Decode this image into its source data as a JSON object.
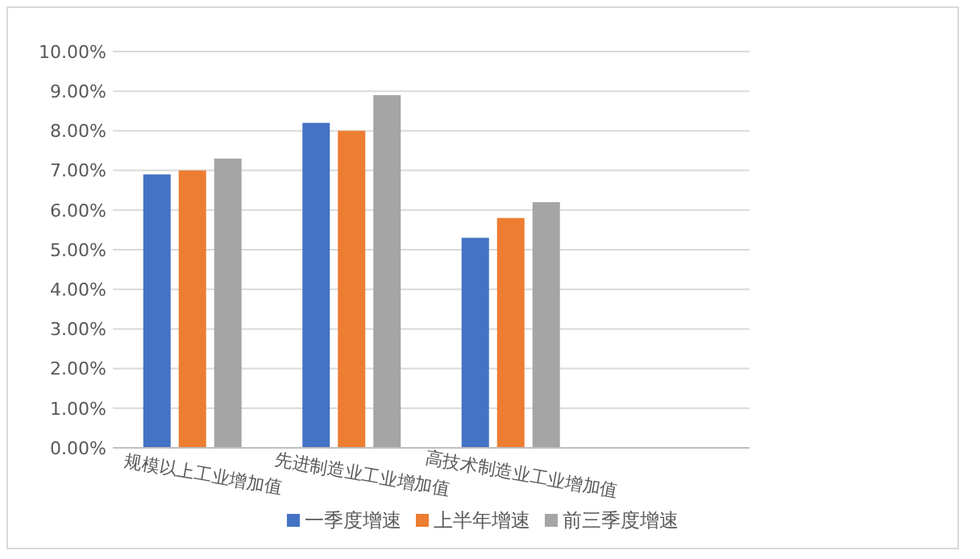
{
  "chart_data": {
    "type": "bar",
    "categories": [
      "规模以上工业增加值",
      "先进制造业工业增加值",
      "高技术制造业工业增加值",
      null
    ],
    "series": [
      {
        "name": "一季度增速",
        "color": "#4472c4",
        "values": [
          6.9,
          8.2,
          5.3,
          null
        ]
      },
      {
        "name": "上半年增速",
        "color": "#ed7d31",
        "values": [
          7.0,
          8.0,
          5.8,
          null
        ]
      },
      {
        "name": "前三季度增速",
        "color": "#a5a5a5",
        "values": [
          7.3,
          8.9,
          6.2,
          null
        ]
      }
    ],
    "ylim": [
      0,
      10
    ],
    "yticks": [
      {
        "value": 0,
        "label": "0.00%"
      },
      {
        "value": 1,
        "label": "1.00%"
      },
      {
        "value": 2,
        "label": "2.00%"
      },
      {
        "value": 3,
        "label": "3.00%"
      },
      {
        "value": 4,
        "label": "4.00%"
      },
      {
        "value": 5,
        "label": "5.00%"
      },
      {
        "value": 6,
        "label": "6.00%"
      },
      {
        "value": 7,
        "label": "7.00%"
      },
      {
        "value": 8,
        "label": "8.00%"
      },
      {
        "value": 9,
        "label": "9.00%"
      },
      {
        "value": 10,
        "label": "10.00%"
      }
    ],
    "grid": "y",
    "legend": "bottom"
  }
}
